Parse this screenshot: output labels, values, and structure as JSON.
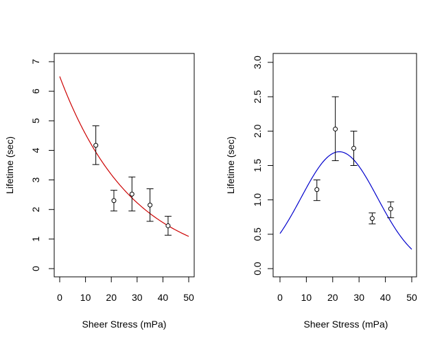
{
  "chart_data": [
    {
      "type": "scatter",
      "xlabel": "Sheer Stress (mPa)",
      "ylabel": "Lifetime (sec)",
      "xlim": [
        0,
        50
      ],
      "ylim": [
        0,
        7
      ],
      "xticks": [
        "0",
        "10",
        "20",
        "30",
        "40",
        "50"
      ],
      "yticks": [
        "0",
        "1",
        "2",
        "3",
        "4",
        "5",
        "6",
        "7"
      ],
      "points": [
        {
          "x": 14,
          "y": 4.17,
          "lo": 3.52,
          "hi": 4.83
        },
        {
          "x": 21,
          "y": 2.3,
          "lo": 1.95,
          "hi": 2.65
        },
        {
          "x": 28,
          "y": 2.52,
          "lo": 1.95,
          "hi": 3.1
        },
        {
          "x": 35,
          "y": 2.15,
          "lo": 1.6,
          "hi": 2.7
        },
        {
          "x": 42,
          "y": 1.45,
          "lo": 1.13,
          "hi": 1.77
        }
      ],
      "curve": {
        "kind": "exponential",
        "a": 6.5,
        "b": -0.0357,
        "x_from": 0,
        "x_to": 50,
        "color": "#cc0000"
      },
      "grid": false,
      "legend": "none"
    },
    {
      "type": "scatter",
      "xlabel": "Sheer Stress (mPa)",
      "ylabel": "Lifetime (sec)",
      "xlim": [
        0,
        50
      ],
      "ylim": [
        0,
        3
      ],
      "xticks": [
        "0",
        "10",
        "20",
        "30",
        "40",
        "50"
      ],
      "yticks": [
        "0.0",
        "0.5",
        "1.0",
        "1.5",
        "2.0",
        "2.5",
        "3.0"
      ],
      "points": [
        {
          "x": 14,
          "y": 1.15,
          "lo": 0.99,
          "hi": 1.29
        },
        {
          "x": 21,
          "y": 2.03,
          "lo": 1.57,
          "hi": 2.5
        },
        {
          "x": 28,
          "y": 1.75,
          "lo": 1.5,
          "hi": 2.0
        },
        {
          "x": 35,
          "y": 0.73,
          "lo": 0.65,
          "hi": 0.81
        },
        {
          "x": 42,
          "y": 0.87,
          "lo": 0.74,
          "hi": 0.97
        }
      ],
      "curve": {
        "kind": "gaussian",
        "a": 1.7,
        "mu": 22.5,
        "sigma": 14.5,
        "x_from": 0,
        "x_to": 50,
        "color": "#0000cc"
      },
      "grid": false,
      "legend": "none"
    }
  ]
}
